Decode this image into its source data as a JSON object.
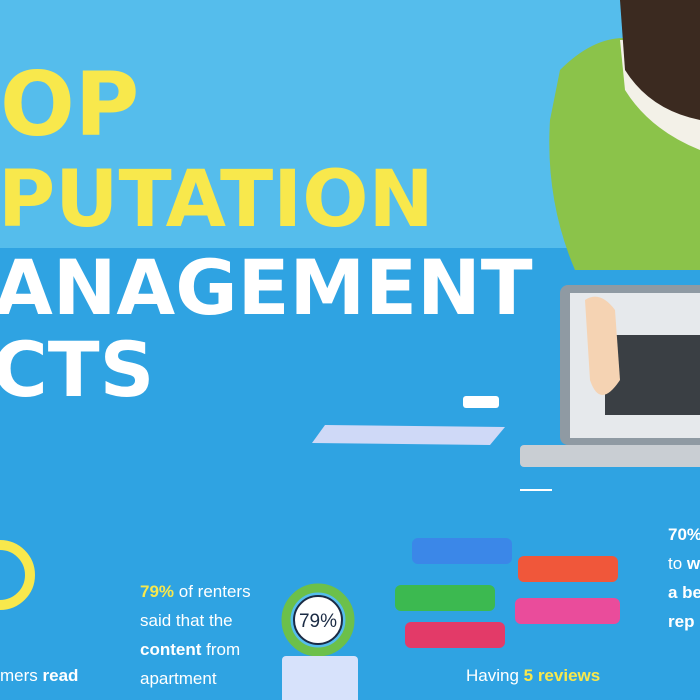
{
  "title": {
    "lines": [
      {
        "text": "OP",
        "color": "#f8e84c"
      },
      {
        "text": "PUTATION",
        "color": "#f8e84c"
      },
      {
        "text": "ANAGEMENT",
        "color": "#ffffff"
      },
      {
        "text": "CTS",
        "color": "#ffffff"
      }
    ]
  },
  "facts": [
    {
      "lines": [
        [
          {
            "text": "mers ",
            "bold": false
          },
          {
            "text": "read",
            "bold": true
          }
        ]
      ]
    },
    {
      "badge": "79%",
      "lines": [
        [
          {
            "text": "79%",
            "bold": true,
            "color": "#f8e84c"
          },
          {
            "text": " of renters",
            "bold": false
          }
        ],
        [
          {
            "text": "said that the",
            "bold": false
          }
        ],
        [
          {
            "text": "content",
            "bold": true
          },
          {
            "text": " from",
            "bold": false
          }
        ],
        [
          {
            "text": "apartment",
            "bold": false
          }
        ]
      ]
    },
    {
      "lines": [
        [
          {
            "text": "Having ",
            "bold": false
          },
          {
            "text": "5 reviews",
            "bold": true,
            "color": "#f8e84c"
          }
        ]
      ]
    },
    {
      "lines": [
        [
          {
            "text": "70%",
            "bold": true
          }
        ],
        [
          {
            "text": "to ",
            "bold": false
          },
          {
            "text": "w",
            "bold": true
          }
        ],
        [
          {
            "text": "a be",
            "bold": true
          }
        ],
        [
          {
            "text": "rep",
            "bold": true
          }
        ]
      ]
    }
  ]
}
